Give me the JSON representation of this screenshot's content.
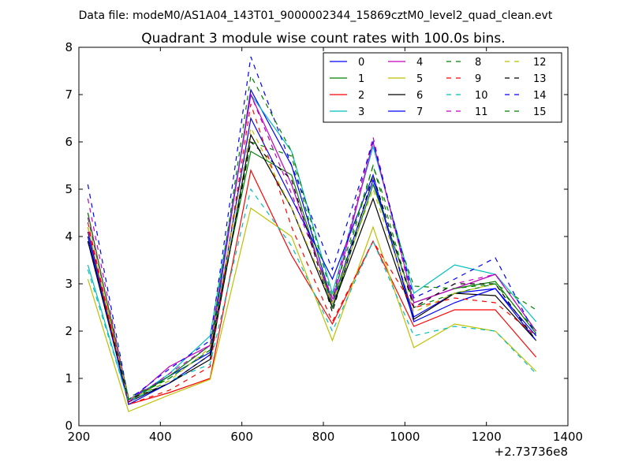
{
  "chart_data": {
    "type": "line",
    "suptitle": "Data file: modeM0/AS1A04_143T01_9000002344_15869cztM0_level2_quad_clean.evt",
    "title": "Quadrant 3 module wise count rates with 100.0s bins.",
    "xlabel": "",
    "ylabel": "",
    "x_offset_label": "+2.73736e8",
    "xlim": [
      200,
      1400
    ],
    "ylim": [
      0,
      8
    ],
    "xticks": [
      200,
      400,
      600,
      800,
      1000,
      1200,
      1400
    ],
    "yticks": [
      0,
      1,
      2,
      3,
      4,
      5,
      6,
      7,
      8
    ],
    "x": [
      222,
      322,
      422,
      522,
      622,
      722,
      822,
      922,
      1022,
      1122,
      1222,
      1322
    ],
    "legend_position": "top-right",
    "grid": false,
    "series": [
      {
        "name": "0",
        "color": "#0000ff",
        "dash": "solid",
        "values": [
          4.1,
          0.55,
          1.05,
          1.55,
          7.1,
          5.5,
          2.6,
          5.2,
          2.3,
          2.8,
          2.9,
          1.9
        ]
      },
      {
        "name": "1",
        "color": "#008000",
        "dash": "solid",
        "values": [
          4.0,
          0.5,
          1.05,
          1.7,
          5.8,
          5.3,
          2.5,
          5.1,
          2.6,
          2.9,
          3.05,
          1.95
        ]
      },
      {
        "name": "2",
        "color": "#ff0000",
        "dash": "solid",
        "values": [
          4.2,
          0.45,
          0.7,
          1.0,
          5.4,
          3.6,
          2.15,
          3.9,
          2.1,
          2.45,
          2.45,
          1.45
        ]
      },
      {
        "name": "3",
        "color": "#00bfbf",
        "dash": "solid",
        "values": [
          3.4,
          0.5,
          1.1,
          1.9,
          7.0,
          5.8,
          2.8,
          5.9,
          2.8,
          3.4,
          3.2,
          2.2
        ]
      },
      {
        "name": "4",
        "color": "#bf00bf",
        "dash": "solid",
        "values": [
          4.5,
          0.5,
          1.25,
          1.7,
          7.0,
          5.1,
          2.6,
          6.0,
          2.6,
          2.9,
          3.2,
          2.0
        ]
      },
      {
        "name": "5",
        "color": "#bfbf00",
        "dash": "solid",
        "values": [
          3.1,
          0.3,
          0.65,
          0.98,
          4.6,
          4.0,
          1.8,
          4.2,
          1.65,
          2.15,
          2.0,
          1.15
        ]
      },
      {
        "name": "6",
        "color": "#000000",
        "dash": "solid",
        "values": [
          3.9,
          0.5,
          0.9,
          1.4,
          6.15,
          4.6,
          2.5,
          4.8,
          2.25,
          2.8,
          2.75,
          1.8
        ]
      },
      {
        "name": "7",
        "color": "#0000ff",
        "dash": "solid",
        "values": [
          4.0,
          0.45,
          0.9,
          1.5,
          6.5,
          4.8,
          3.1,
          5.3,
          2.2,
          2.6,
          2.9,
          1.8
        ]
      },
      {
        "name": "8",
        "color": "#008000",
        "dash": "dashed",
        "values": [
          4.4,
          0.6,
          1.0,
          1.6,
          6.0,
          5.7,
          2.5,
          5.5,
          2.5,
          2.8,
          3.0,
          2.0
        ]
      },
      {
        "name": "9",
        "color": "#ff0000",
        "dash": "dashed",
        "values": [
          4.3,
          0.45,
          0.75,
          1.25,
          6.8,
          4.2,
          2.2,
          3.9,
          2.5,
          2.7,
          2.6,
          1.9
        ]
      },
      {
        "name": "10",
        "color": "#00bfbf",
        "dash": "dashed",
        "values": [
          3.3,
          0.5,
          0.95,
          1.3,
          5.0,
          3.8,
          2.0,
          3.9,
          1.9,
          2.1,
          2.0,
          1.1
        ]
      },
      {
        "name": "11",
        "color": "#bf00bf",
        "dash": "dashed",
        "values": [
          4.8,
          0.5,
          1.1,
          1.7,
          7.0,
          4.9,
          2.7,
          6.1,
          2.5,
          3.0,
          3.2,
          2.0
        ]
      },
      {
        "name": "12",
        "color": "#bfbf00",
        "dash": "dashed",
        "values": [
          4.2,
          0.55,
          0.95,
          1.65,
          6.3,
          4.6,
          2.6,
          5.0,
          2.4,
          2.8,
          3.0,
          1.8
        ]
      },
      {
        "name": "13",
        "color": "#000000",
        "dash": "dashed",
        "values": [
          3.9,
          0.55,
          0.9,
          1.5,
          6.0,
          5.2,
          2.4,
          5.3,
          2.5,
          3.0,
          3.0,
          1.8
        ]
      },
      {
        "name": "14",
        "color": "#0000ff",
        "dash": "dashed",
        "values": [
          5.1,
          0.55,
          1.2,
          1.8,
          7.8,
          5.5,
          3.3,
          6.0,
          2.7,
          3.1,
          3.55,
          1.9
        ]
      },
      {
        "name": "15",
        "color": "#008000",
        "dash": "dashed",
        "values": [
          4.5,
          0.55,
          1.0,
          1.6,
          7.4,
          5.8,
          2.7,
          5.5,
          2.95,
          2.9,
          3.0,
          2.45
        ]
      }
    ]
  }
}
